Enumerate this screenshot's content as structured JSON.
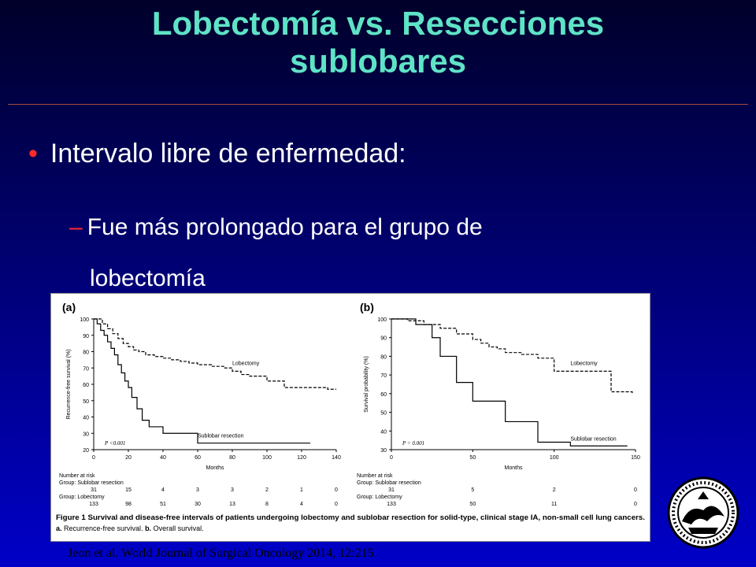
{
  "slide": {
    "title_line1": "Lobectomía vs. Resecciones",
    "title_line2": "sublobares",
    "bullet": "Intervalo libre de enfermedad:",
    "subbullet_line1": "Fue más prolongado para el grupo de",
    "subbullet_line2": "lobectomía",
    "citation": "Jeon et al. World Journal of Surgical Oncology 2014, 12:215",
    "colors": {
      "title": "#5fe3c6",
      "bullet": "#ff2a2a",
      "text": "#ffffff"
    }
  },
  "figure": {
    "caption_bold": "Figure 1 Survival and disease-free intervals of patients undergoing lobectomy and sublobar resection for solid-type, clinical stage IA, non-small cell lung cancers.",
    "caption_a": "a.",
    "caption_a_text": "Recurrence-free survival.",
    "caption_b": "b.",
    "caption_b_text": "Overall survival.",
    "risk_header": "Number at risk",
    "risk_group_sub": "Group: Sublobar resection",
    "risk_group_lob": "Group: Lobectomy"
  },
  "chart_data": [
    {
      "type": "line",
      "panel_label": "(a)",
      "ylabel": "Recurrence-free survival (%)",
      "xlabel": "Months",
      "xlim": [
        0,
        140
      ],
      "ylim": [
        20,
        100
      ],
      "xticks": [
        "0",
        "20",
        "40",
        "60",
        "80",
        "100",
        "120",
        "140"
      ],
      "yticks": [
        "20",
        "30",
        "40",
        "50",
        "60",
        "70",
        "80",
        "90",
        "100"
      ],
      "p_value": "P <0.001",
      "series": [
        {
          "name": "Lobectomy",
          "style": "dashed",
          "x": [
            0,
            5,
            8,
            11,
            14,
            17,
            20,
            23,
            26,
            30,
            35,
            40,
            45,
            50,
            55,
            60,
            68,
            75,
            80,
            85,
            90,
            100,
            110,
            125,
            135,
            140
          ],
          "y": [
            100,
            97,
            94,
            91,
            88,
            85,
            83,
            81,
            80,
            78,
            77,
            76,
            75,
            74,
            73,
            72,
            71,
            70,
            68,
            66,
            65,
            62,
            58,
            58,
            57,
            57
          ]
        },
        {
          "name": "Sublobar resection",
          "style": "solid",
          "x": [
            0,
            2,
            4,
            6,
            8,
            10,
            12,
            14,
            16,
            18,
            20,
            22,
            25,
            28,
            32,
            40,
            50,
            58,
            60,
            70,
            80,
            90,
            100,
            110,
            120,
            125
          ],
          "y": [
            100,
            97,
            93,
            90,
            86,
            82,
            78,
            72,
            67,
            62,
            58,
            52,
            45,
            38,
            34,
            30,
            30,
            30,
            24,
            24,
            24,
            24,
            24,
            24,
            24,
            24
          ]
        }
      ],
      "risk_x": [
        "0",
        "20",
        "40",
        "60",
        "80",
        "100",
        "120",
        "140"
      ],
      "risk_sub": [
        "31",
        "15",
        "4",
        "3",
        "3",
        "2",
        "1",
        "0"
      ],
      "risk_lob": [
        "133",
        "98",
        "51",
        "30",
        "13",
        "8",
        "4",
        "0"
      ]
    },
    {
      "type": "line",
      "panel_label": "(b)",
      "ylabel": "Survival probability (%)",
      "xlabel": "Months",
      "xlim": [
        0,
        150
      ],
      "ylim": [
        30,
        100
      ],
      "xticks": [
        "0",
        "50",
        "100",
        "150"
      ],
      "yticks": [
        "30",
        "40",
        "50",
        "60",
        "70",
        "80",
        "90",
        "100"
      ],
      "p_value": "P = 0.001",
      "series": [
        {
          "name": "Lobectomy",
          "style": "dashed",
          "x": [
            0,
            10,
            20,
            30,
            40,
            50,
            55,
            60,
            65,
            70,
            80,
            90,
            100,
            110,
            115,
            130,
            135,
            140,
            148
          ],
          "y": [
            100,
            99,
            97,
            95,
            92,
            89,
            87,
            85,
            84,
            82,
            81,
            79,
            72,
            72,
            72,
            72,
            61,
            61,
            60
          ]
        },
        {
          "name": "Sublobar resection",
          "style": "solid",
          "x": [
            0,
            15,
            25,
            30,
            35,
            40,
            50,
            60,
            70,
            80,
            90,
            100,
            110,
            120,
            130,
            140,
            145
          ],
          "y": [
            100,
            97,
            90,
            80,
            80,
            66,
            56,
            56,
            45,
            45,
            34,
            34,
            32,
            32,
            32,
            32,
            32
          ]
        }
      ],
      "risk_x": [
        "0",
        "50",
        "100",
        "150"
      ],
      "risk_sub": [
        "31",
        "5",
        "2",
        "0"
      ],
      "risk_lob": [
        "133",
        "50",
        "11",
        "0"
      ]
    }
  ]
}
